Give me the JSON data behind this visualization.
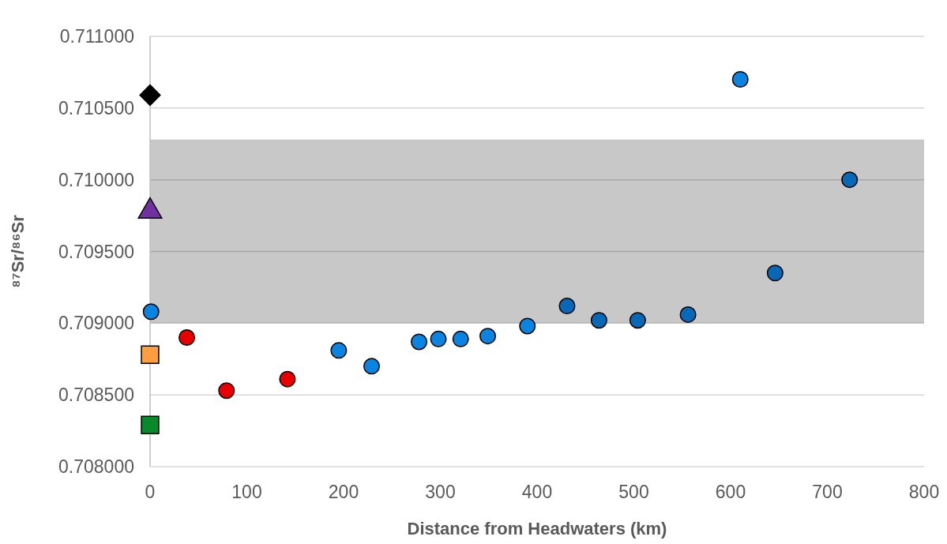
{
  "chart_data": {
    "type": "scatter",
    "xlabel": "Distance from Headwaters (km)",
    "ylabel": "⁸⁷Sr/⁸⁶Sr",
    "xlim": [
      0,
      800
    ],
    "xticks": [
      0,
      100,
      200,
      300,
      400,
      500,
      600,
      700,
      800
    ],
    "ylim": [
      0.708,
      0.711
    ],
    "yticks": [
      {
        "value": 0.708,
        "label": "0.708000"
      },
      {
        "value": 0.7085,
        "label": "0.708500"
      },
      {
        "value": 0.709,
        "label": "0.709000"
      },
      {
        "value": 0.7095,
        "label": "0.709500"
      },
      {
        "value": 0.71,
        "label": "0.710000"
      },
      {
        "value": 0.7105,
        "label": "0.710500"
      },
      {
        "value": 0.711,
        "label": "0.711000"
      }
    ],
    "grid": "y",
    "bands": [
      {
        "axis": "y",
        "from": 0.709,
        "to": 0.71028,
        "color": "#c8c8c8"
      }
    ],
    "series": [
      {
        "color": "#000000",
        "marker": "diamond",
        "x": [
          0
        ],
        "values": [
          0.71059
        ]
      },
      {
        "color": "#7030a0",
        "marker": "triangle",
        "x": [
          0
        ],
        "values": [
          0.70978
        ]
      },
      {
        "color": "#ff9e40",
        "marker": "square",
        "x": [
          0
        ],
        "values": [
          0.70878
        ]
      },
      {
        "color": "#088a2c",
        "marker": "square",
        "x": [
          0
        ],
        "values": [
          0.70829
        ]
      },
      {
        "color": "#e80000",
        "marker": "circle",
        "x": [
          38,
          79,
          142
        ],
        "values": [
          0.7089,
          0.70853,
          0.70861
        ]
      },
      {
        "color": "#0a84e0",
        "marker": "circle",
        "x": [
          1,
          195,
          229,
          278,
          298,
          321,
          349,
          390,
          610
        ],
        "values": [
          0.70908,
          0.70881,
          0.7087,
          0.70887,
          0.70889,
          0.70889,
          0.70891,
          0.70898,
          0.7107
        ]
      },
      {
        "color": "#0868b8",
        "marker": "circle",
        "x": [
          431,
          464,
          504,
          556,
          646,
          723
        ],
        "values": [
          0.70912,
          0.70902,
          0.70902,
          0.70906,
          0.70935,
          0.71
        ]
      }
    ]
  }
}
